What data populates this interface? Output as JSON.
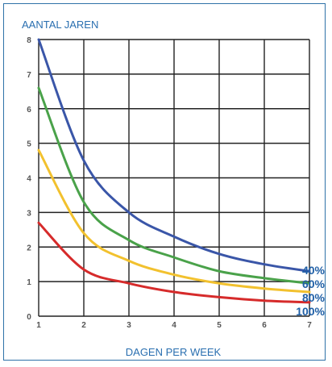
{
  "chart_data": {
    "type": "line",
    "ylabel": "AANTAL JAREN",
    "xlabel": "DAGEN PER WEEK",
    "xlim": [
      1,
      7
    ],
    "ylim": [
      0,
      8
    ],
    "x_ticks": [
      "1",
      "2",
      "3",
      "4",
      "5",
      "6",
      "7"
    ],
    "y_ticks": [
      "0",
      "1",
      "2",
      "3",
      "4",
      "5",
      "6",
      "7",
      "8"
    ],
    "grid": true,
    "legend_position": "right",
    "x": [
      1,
      2,
      3,
      4,
      5,
      6,
      7
    ],
    "series": [
      {
        "name": "40%",
        "color": "#3a56a8",
        "values": [
          8.0,
          4.5,
          3.0,
          2.3,
          1.8,
          1.5,
          1.3
        ]
      },
      {
        "name": "60%",
        "color": "#4aa24a",
        "values": [
          6.6,
          3.3,
          2.2,
          1.7,
          1.3,
          1.1,
          0.95
        ]
      },
      {
        "name": "80%",
        "color": "#f2c12e",
        "values": [
          4.8,
          2.4,
          1.6,
          1.2,
          0.95,
          0.8,
          0.7
        ]
      },
      {
        "name": "100%",
        "color": "#d62b2b",
        "values": [
          2.7,
          1.35,
          0.95,
          0.7,
          0.55,
          0.45,
          0.4
        ]
      }
    ]
  }
}
